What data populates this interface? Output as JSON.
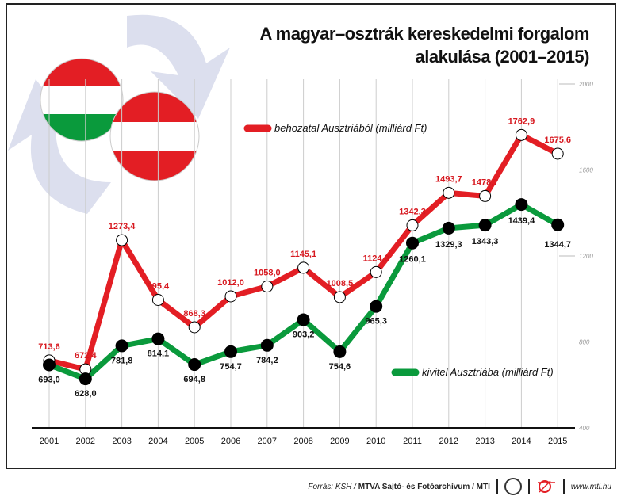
{
  "title_line1": "A magyar–osztrák kereskedelmi forgalom",
  "title_line2": "alakulása (2001–2015)",
  "footer": {
    "source_prefix": "Forrás: KSH / ",
    "source_bold": "MTVA Sajtó- és Fotóarchívum / MTI",
    "mtva_logo": "MTVA",
    "url": "www.mti.hu"
  },
  "colors": {
    "import": "#e31e24",
    "export": "#0a9a3c",
    "import_label": "#d71920"
  },
  "chart_data": {
    "type": "line",
    "title": "A magyar–osztrák kereskedelmi forgalom alakulása (2001–2015)",
    "x": [
      "2001",
      "2002",
      "2003",
      "2004",
      "2005",
      "2006",
      "2007",
      "2008",
      "2009",
      "2010",
      "2011",
      "2012",
      "2013",
      "2014",
      "2015"
    ],
    "ylim": [
      400,
      2000
    ],
    "yticks": [
      "400",
      "800",
      "1200",
      "1600",
      "2000"
    ],
    "y_axis_side": "right",
    "grid": "vertical",
    "series": [
      {
        "name": "behozatal Ausztriából (milliárd Ft)",
        "values": [
          713.6,
          672.4,
          1273.4,
          995.4,
          868.3,
          1012.0,
          1058.0,
          1145.1,
          1008.5,
          1124.9,
          1342.3,
          1493.7,
          1478.7,
          1762.9,
          1675.6
        ],
        "labels": [
          "713,6",
          "672,4",
          "1273,4",
          "995,4",
          "868,3",
          "1012,0",
          "1058,0",
          "1145,1",
          "1008,5",
          "1124,9",
          "1342,3",
          "1493,7",
          "1478,7",
          "1762,9",
          "1675,6"
        ]
      },
      {
        "name": "kivitel Ausztriába (milliárd Ft)",
        "values": [
          693.0,
          628.0,
          781.8,
          814.1,
          694.8,
          754.7,
          784.2,
          903.2,
          754.6,
          965.3,
          1260.1,
          1329.3,
          1343.3,
          1439.4,
          1344.7
        ],
        "labels": [
          "693,0",
          "628,0",
          "781,8",
          "814,1",
          "694,8",
          "754,7",
          "784,2",
          "903,2",
          "754,6",
          "965,3",
          "1260,1",
          "1329,3",
          "1343,3",
          "1439,4",
          "1344,7"
        ]
      }
    ]
  }
}
